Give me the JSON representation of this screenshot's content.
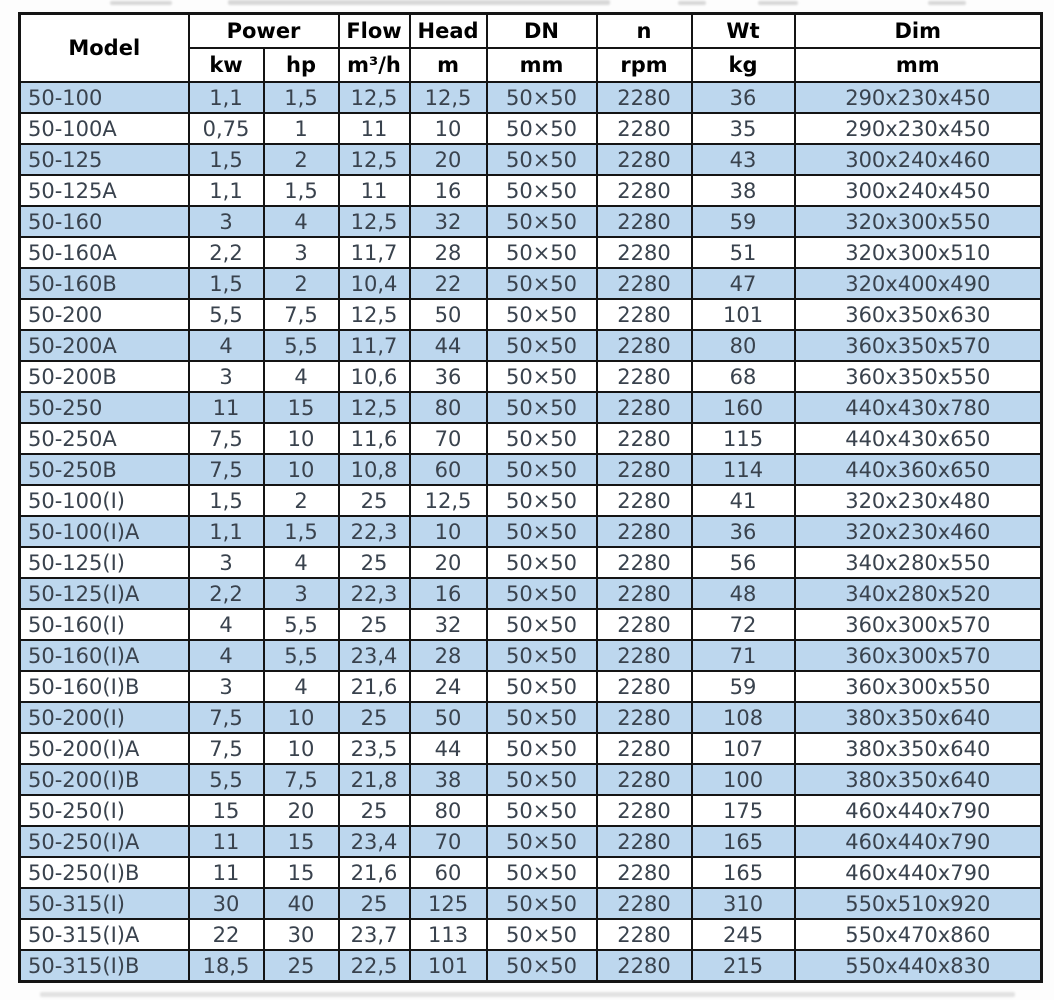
{
  "colors": {
    "shaded_row": "#bdd7ee",
    "unshaded_row": "#ffffff",
    "row_text": "#39424d",
    "header_text": "#000000",
    "border": "#141414"
  },
  "table": {
    "header": {
      "model_label": "Model",
      "groups": [
        {
          "label": "Power"
        },
        {
          "label": "Flow"
        },
        {
          "label": "Head"
        },
        {
          "label": "DN"
        },
        {
          "label": "n"
        },
        {
          "label": "Wt"
        },
        {
          "label": "Dim"
        }
      ],
      "units": [
        "kw",
        "hp",
        "m³/h",
        "m",
        "mm",
        "rpm",
        "kg",
        "mm"
      ]
    },
    "rows": [
      {
        "model": "50-100",
        "kw": "1,1",
        "hp": "1,5",
        "flow": "12,5",
        "head": "12,5",
        "dn": "50×50",
        "rpm": "2280",
        "wt": "36",
        "dim": "290x230x450",
        "shaded": true
      },
      {
        "model": "50-100A",
        "kw": "0,75",
        "hp": "1",
        "flow": "11",
        "head": "10",
        "dn": "50×50",
        "rpm": "2280",
        "wt": "35",
        "dim": "290x230x450",
        "shaded": false
      },
      {
        "model": "50-125",
        "kw": "1,5",
        "hp": "2",
        "flow": "12,5",
        "head": "20",
        "dn": "50×50",
        "rpm": "2280",
        "wt": "43",
        "dim": "300x240x460",
        "shaded": true
      },
      {
        "model": "50-125A",
        "kw": "1,1",
        "hp": "1,5",
        "flow": "11",
        "head": "16",
        "dn": "50×50",
        "rpm": "2280",
        "wt": "38",
        "dim": "300x240x450",
        "shaded": false
      },
      {
        "model": "50-160",
        "kw": "3",
        "hp": "4",
        "flow": "12,5",
        "head": "32",
        "dn": "50×50",
        "rpm": "2280",
        "wt": "59",
        "dim": "320x300x550",
        "shaded": true
      },
      {
        "model": "50-160A",
        "kw": "2,2",
        "hp": "3",
        "flow": "11,7",
        "head": "28",
        "dn": "50×50",
        "rpm": "2280",
        "wt": "51",
        "dim": "320x300x510",
        "shaded": false
      },
      {
        "model": "50-160B",
        "kw": "1,5",
        "hp": "2",
        "flow": "10,4",
        "head": "22",
        "dn": "50×50",
        "rpm": "2280",
        "wt": "47",
        "dim": "320x400x490",
        "shaded": true
      },
      {
        "model": "50-200",
        "kw": "5,5",
        "hp": "7,5",
        "flow": "12,5",
        "head": "50",
        "dn": "50×50",
        "rpm": "2280",
        "wt": "101",
        "dim": "360x350x630",
        "shaded": false
      },
      {
        "model": "50-200A",
        "kw": "4",
        "hp": "5,5",
        "flow": "11,7",
        "head": "44",
        "dn": "50×50",
        "rpm": "2280",
        "wt": "80",
        "dim": "360x350x570",
        "shaded": true
      },
      {
        "model": "50-200B",
        "kw": "3",
        "hp": "4",
        "flow": "10,6",
        "head": "36",
        "dn": "50×50",
        "rpm": "2280",
        "wt": "68",
        "dim": "360x350x550",
        "shaded": false
      },
      {
        "model": "50-250",
        "kw": "11",
        "hp": "15",
        "flow": "12,5",
        "head": "80",
        "dn": "50×50",
        "rpm": "2280",
        "wt": "160",
        "dim": "440x430x780",
        "shaded": true
      },
      {
        "model": "50-250A",
        "kw": "7,5",
        "hp": "10",
        "flow": "11,6",
        "head": "70",
        "dn": "50×50",
        "rpm": "2280",
        "wt": "115",
        "dim": "440x430x650",
        "shaded": false
      },
      {
        "model": "50-250B",
        "kw": "7,5",
        "hp": "10",
        "flow": "10,8",
        "head": "60",
        "dn": "50×50",
        "rpm": "2280",
        "wt": "114",
        "dim": "440x360x650",
        "shaded": true
      },
      {
        "model": "50-100(I)",
        "kw": "1,5",
        "hp": "2",
        "flow": "25",
        "head": "12,5",
        "dn": "50×50",
        "rpm": "2280",
        "wt": "41",
        "dim": "320x230x480",
        "shaded": false
      },
      {
        "model": "50-100(I)A",
        "kw": "1,1",
        "hp": "1,5",
        "flow": "22,3",
        "head": "10",
        "dn": "50×50",
        "rpm": "2280",
        "wt": "36",
        "dim": "320x230x460",
        "shaded": true
      },
      {
        "model": "50-125(I)",
        "kw": "3",
        "hp": "4",
        "flow": "25",
        "head": "20",
        "dn": "50×50",
        "rpm": "2280",
        "wt": "56",
        "dim": "340x280x550",
        "shaded": false
      },
      {
        "model": "50-125(I)A",
        "kw": "2,2",
        "hp": "3",
        "flow": "22,3",
        "head": "16",
        "dn": "50×50",
        "rpm": "2280",
        "wt": "48",
        "dim": "340x280x520",
        "shaded": true
      },
      {
        "model": "50-160(I)",
        "kw": "4",
        "hp": "5,5",
        "flow": "25",
        "head": "32",
        "dn": "50×50",
        "rpm": "2280",
        "wt": "72",
        "dim": "360x300x570",
        "shaded": false
      },
      {
        "model": "50-160(I)A",
        "kw": "4",
        "hp": "5,5",
        "flow": "23,4",
        "head": "28",
        "dn": "50×50",
        "rpm": "2280",
        "wt": "71",
        "dim": "360x300x570",
        "shaded": true
      },
      {
        "model": "50-160(I)B",
        "kw": "3",
        "hp": "4",
        "flow": "21,6",
        "head": "24",
        "dn": "50×50",
        "rpm": "2280",
        "wt": "59",
        "dim": "360x300x550",
        "shaded": false
      },
      {
        "model": "50-200(I)",
        "kw": "7,5",
        "hp": "10",
        "flow": "25",
        "head": "50",
        "dn": "50×50",
        "rpm": "2280",
        "wt": "108",
        "dim": "380x350x640",
        "shaded": true
      },
      {
        "model": "50-200(I)A",
        "kw": "7,5",
        "hp": "10",
        "flow": "23,5",
        "head": "44",
        "dn": "50×50",
        "rpm": "2280",
        "wt": "107",
        "dim": "380x350x640",
        "shaded": false
      },
      {
        "model": "50-200(I)B",
        "kw": "5,5",
        "hp": "7,5",
        "flow": "21,8",
        "head": "38",
        "dn": "50×50",
        "rpm": "2280",
        "wt": "100",
        "dim": "380x350x640",
        "shaded": true
      },
      {
        "model": "50-250(I)",
        "kw": "15",
        "hp": "20",
        "flow": "25",
        "head": "80",
        "dn": "50×50",
        "rpm": "2280",
        "wt": "175",
        "dim": "460x440x790",
        "shaded": false
      },
      {
        "model": "50-250(I)A",
        "kw": "11",
        "hp": "15",
        "flow": "23,4",
        "head": "70",
        "dn": "50×50",
        "rpm": "2280",
        "wt": "165",
        "dim": "460x440x790",
        "shaded": true
      },
      {
        "model": "50-250(I)B",
        "kw": "11",
        "hp": "15",
        "flow": "21,6",
        "head": "60",
        "dn": "50×50",
        "rpm": "2280",
        "wt": "165",
        "dim": "460x440x790",
        "shaded": false
      },
      {
        "model": "50-315(I)",
        "kw": "30",
        "hp": "40",
        "flow": "25",
        "head": "125",
        "dn": "50×50",
        "rpm": "2280",
        "wt": "310",
        "dim": "550x510x920",
        "shaded": true
      },
      {
        "model": "50-315(I)A",
        "kw": "22",
        "hp": "30",
        "flow": "23,7",
        "head": "113",
        "dn": "50×50",
        "rpm": "2280",
        "wt": "245",
        "dim": "550x470x860",
        "shaded": false
      },
      {
        "model": "50-315(I)B",
        "kw": "18,5",
        "hp": "25",
        "flow": "22,5",
        "head": "101",
        "dn": "50×50",
        "rpm": "2280",
        "wt": "215",
        "dim": "550x440x830",
        "shaded": true
      }
    ]
  }
}
